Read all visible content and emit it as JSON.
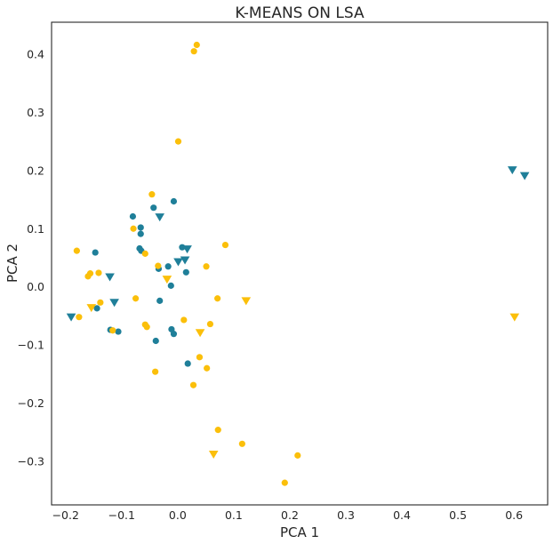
{
  "chart_data": {
    "type": "scatter",
    "title": "K-MEANS ON LSA",
    "xlabel": "PCA 1",
    "ylabel": "PCA 2",
    "xlim": [
      -0.225,
      0.66
    ],
    "ylim": [
      -0.375,
      0.455
    ],
    "xticks": [
      -0.2,
      -0.1,
      0.0,
      0.1,
      0.2,
      0.3,
      0.4,
      0.5,
      0.6
    ],
    "xtick_labels": [
      "−0.2",
      "−0.1",
      "0.0",
      "0.1",
      "0.2",
      "0.3",
      "0.4",
      "0.5",
      "0.6"
    ],
    "yticks": [
      -0.3,
      -0.2,
      -0.1,
      0.0,
      0.1,
      0.2,
      0.3,
      0.4
    ],
    "ytick_labels": [
      "−0.3",
      "−0.2",
      "−0.1",
      "0.0",
      "0.1",
      "0.2",
      "0.3",
      "0.4"
    ],
    "grid": false,
    "colors": {
      "teal": "#1f7f99",
      "gold": "#fbbf0a"
    },
    "series": [
      {
        "color": "#1f7f99",
        "marker": "circle",
        "points": [
          [
            -0.147,
            0.059
          ],
          [
            -0.08,
            0.121
          ],
          [
            -0.066,
            0.102
          ],
          [
            -0.066,
            0.091
          ],
          [
            -0.068,
            0.066
          ],
          [
            -0.065,
            0.062
          ],
          [
            -0.043,
            0.136
          ],
          [
            -0.007,
            0.147
          ],
          [
            0.008,
            0.068
          ],
          [
            -0.034,
            0.031
          ],
          [
            -0.017,
            0.035
          ],
          [
            0.015,
            0.025
          ],
          [
            -0.012,
            0.002
          ],
          [
            -0.032,
            -0.024
          ],
          [
            -0.144,
            -0.037
          ],
          [
            -0.12,
            -0.074
          ],
          [
            -0.106,
            -0.077
          ],
          [
            -0.039,
            -0.093
          ],
          [
            -0.011,
            -0.073
          ],
          [
            -0.007,
            -0.081
          ],
          [
            0.018,
            -0.132
          ]
        ]
      },
      {
        "color": "#1f7f99",
        "marker": "triangle-down",
        "points": [
          [
            -0.19,
            -0.052
          ],
          [
            -0.121,
            0.017
          ],
          [
            -0.113,
            -0.027
          ],
          [
            -0.032,
            0.12
          ],
          [
            0.001,
            0.043
          ],
          [
            0.013,
            0.046
          ],
          [
            0.017,
            0.065
          ],
          [
            0.597,
            0.201
          ],
          [
            0.619,
            0.191
          ]
        ]
      },
      {
        "color": "#fbbf0a",
        "marker": "circle",
        "points": [
          [
            0.034,
            0.416
          ],
          [
            0.029,
            0.405
          ],
          [
            0.001,
            0.25
          ],
          [
            -0.046,
            0.159
          ],
          [
            -0.079,
            0.1
          ],
          [
            -0.058,
            0.057
          ],
          [
            -0.035,
            0.036
          ],
          [
            0.051,
            0.035
          ],
          [
            0.085,
            0.072
          ],
          [
            -0.18,
            0.062
          ],
          [
            -0.156,
            0.023
          ],
          [
            -0.16,
            0.018
          ],
          [
            -0.141,
            0.024
          ],
          [
            -0.138,
            -0.027
          ],
          [
            -0.176,
            -0.052
          ],
          [
            -0.075,
            -0.02
          ],
          [
            -0.058,
            -0.065
          ],
          [
            -0.055,
            -0.069
          ],
          [
            0.011,
            -0.057
          ],
          [
            0.058,
            -0.064
          ],
          [
            0.071,
            -0.02
          ],
          [
            -0.116,
            -0.075
          ],
          [
            0.039,
            -0.121
          ],
          [
            0.052,
            -0.14
          ],
          [
            -0.04,
            -0.146
          ],
          [
            0.028,
            -0.169
          ],
          [
            0.072,
            -0.246
          ],
          [
            0.115,
            -0.27
          ],
          [
            0.214,
            -0.29
          ],
          [
            0.191,
            -0.337
          ]
        ]
      },
      {
        "color": "#fbbf0a",
        "marker": "triangle-down",
        "points": [
          [
            -0.154,
            -0.036
          ],
          [
            -0.019,
            0.013
          ],
          [
            0.04,
            -0.079
          ],
          [
            0.122,
            -0.024
          ],
          [
            0.064,
            -0.288
          ],
          [
            0.601,
            -0.052
          ]
        ]
      }
    ]
  }
}
